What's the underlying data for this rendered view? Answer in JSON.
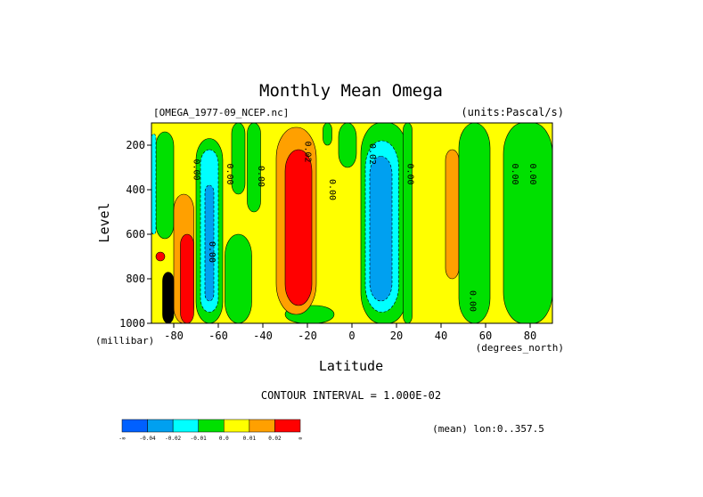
{
  "chart_data": {
    "type": "contour",
    "title": "Monthly Mean Omega",
    "dataset_label": "[OMEGA_1977-09_NCEP.nc]",
    "units_label": "(units:Pascal/s)",
    "xlabel": "Latitude",
    "x_unit_label": "(degrees_north)",
    "ylabel": "Level",
    "y_unit_label": "(millibar)",
    "xlim": [
      -90,
      90
    ],
    "ylim": [
      1000,
      100
    ],
    "x_ticks": [
      {
        "value": -80,
        "label": "-80"
      },
      {
        "value": -60,
        "label": "-60"
      },
      {
        "value": -40,
        "label": "-40"
      },
      {
        "value": -20,
        "label": "-20"
      },
      {
        "value": 0,
        "label": "0"
      },
      {
        "value": 20,
        "label": "20"
      },
      {
        "value": 40,
        "label": "40"
      },
      {
        "value": 60,
        "label": "60"
      },
      {
        "value": 80,
        "label": "80"
      }
    ],
    "y_ticks": [
      {
        "value": 200,
        "label": "200"
      },
      {
        "value": 400,
        "label": "400"
      },
      {
        "value": 600,
        "label": "600"
      },
      {
        "value": 800,
        "label": "800"
      },
      {
        "value": 1000,
        "label": "1000"
      }
    ],
    "contour_interval_label": "CONTOUR INTERVAL = 1.000E-02",
    "mean_label": "(mean) lon:0..357.5",
    "colorbar": {
      "colors": [
        "#0060ff",
        "#00a0f0",
        "#00ffff",
        "#00e000",
        "#ffff00",
        "#ffa000",
        "#ff0000"
      ],
      "tick_labels": [
        "-∞",
        "-0.04",
        "-0.02",
        "-0.01",
        "0.0",
        "0.01",
        "0.02",
        "∞"
      ]
    },
    "background_level": "yellow",
    "regions": [
      {
        "level": "green",
        "lat": [
          -88,
          -80
        ],
        "p": [
          140,
          620
        ]
      },
      {
        "level": "cyan",
        "lat": [
          -90,
          -88
        ],
        "p": [
          150,
          600
        ]
      },
      {
        "level": "green",
        "lat": [
          -70,
          -58
        ],
        "p": [
          170,
          1000
        ]
      },
      {
        "level": "cyan",
        "lat": [
          -68,
          -60
        ],
        "p": [
          220,
          950
        ]
      },
      {
        "level": "blue",
        "lat": [
          -66,
          -62
        ],
        "p": [
          380,
          900
        ]
      },
      {
        "level": "green",
        "lat": [
          -57,
          -45
        ],
        "p": [
          600,
          1000
        ]
      },
      {
        "level": "green",
        "lat": [
          -54,
          -48
        ],
        "p": [
          100,
          420
        ]
      },
      {
        "level": "green",
        "lat": [
          -47,
          -41
        ],
        "p": [
          100,
          500
        ]
      },
      {
        "level": "green",
        "lat": [
          -30,
          -8
        ],
        "p": [
          920,
          1000
        ]
      },
      {
        "level": "orange",
        "lat": [
          -34,
          -16
        ],
        "p": [
          120,
          960
        ]
      },
      {
        "level": "red",
        "lat": [
          -30,
          -18
        ],
        "p": [
          220,
          920
        ]
      },
      {
        "level": "green",
        "lat": [
          -13,
          -9
        ],
        "p": [
          100,
          200
        ]
      },
      {
        "level": "green",
        "lat": [
          -6,
          2
        ],
        "p": [
          100,
          300
        ]
      },
      {
        "level": "green",
        "lat": [
          4,
          25
        ],
        "p": [
          100,
          1000
        ]
      },
      {
        "level": "cyan",
        "lat": [
          6,
          21
        ],
        "p": [
          180,
          950
        ]
      },
      {
        "level": "blue",
        "lat": [
          8,
          18
        ],
        "p": [
          250,
          900
        ]
      },
      {
        "level": "green",
        "lat": [
          23,
          27
        ],
        "p": [
          100,
          1000
        ]
      },
      {
        "level": "orange",
        "lat": [
          42,
          48
        ],
        "p": [
          220,
          800
        ]
      },
      {
        "level": "green",
        "lat": [
          48,
          62
        ],
        "p": [
          100,
          1000
        ]
      },
      {
        "level": "green",
        "lat": [
          68,
          90
        ],
        "p": [
          100,
          1000
        ]
      },
      {
        "level": "orange",
        "lat": [
          -80,
          -71
        ],
        "p": [
          420,
          1000
        ]
      },
      {
        "level": "red",
        "lat": [
          -77,
          -71
        ],
        "p": [
          600,
          1000
        ]
      },
      {
        "level": "black",
        "lat": [
          -85,
          -80
        ],
        "p": [
          770,
          1000
        ]
      },
      {
        "level": "red",
        "lat": [
          -88,
          -84
        ],
        "p": [
          680,
          720
        ]
      }
    ],
    "contour_labels": [
      {
        "text": "0.00",
        "lat": -71,
        "p": 310
      },
      {
        "text": "0.00",
        "lat": -56,
        "p": 330
      },
      {
        "text": "0.00",
        "lat": -42,
        "p": 340
      },
      {
        "text": "0.02",
        "lat": -21,
        "p": 230
      },
      {
        "text": "0.00",
        "lat": -10,
        "p": 400
      },
      {
        "text": "0.02",
        "lat": 8,
        "p": 240
      },
      {
        "text": "0.00",
        "lat": 25,
        "p": 330
      },
      {
        "text": "0.00",
        "lat": 53,
        "p": 900
      },
      {
        "text": "0.00",
        "lat": 72,
        "p": 330
      },
      {
        "text": "0.00",
        "lat": 80,
        "p": 330
      },
      {
        "text": "0.00",
        "lat": -64,
        "p": 680
      }
    ]
  }
}
